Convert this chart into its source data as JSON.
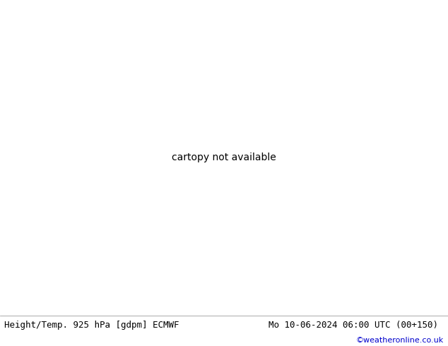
{
  "title_left": "Height/Temp. 925 hPa [gdpm] ECMWF",
  "title_right": "Mo 10-06-2024 06:00 UTC (00+150)",
  "credit": "©weatheronline.co.uk",
  "fig_width": 6.34,
  "fig_height": 4.9,
  "dpi": 100,
  "land_color": "#c8e8a0",
  "sea_color": "#e8e8e8",
  "coast_color": "#888888",
  "border_color": "#888888",
  "title_fontsize": 9.0,
  "credit_fontsize": 8,
  "credit_color": "#0000cc",
  "bottom_text_color": "#000000",
  "extent": [
    -30,
    42,
    27,
    72
  ],
  "height_color": "#000000",
  "cyan_color": "#00cccc",
  "green_color": "#88cc00",
  "orange_color": "#ff8800",
  "red_color": "#ff2020",
  "magenta_color": "#ff00bb"
}
